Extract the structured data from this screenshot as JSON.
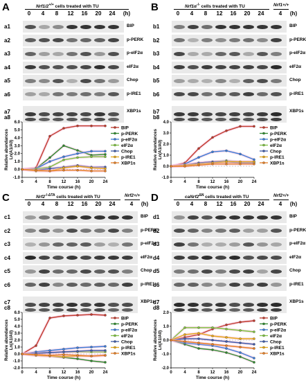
{
  "time_points": [
    "0",
    "4",
    "8",
    "12",
    "16",
    "20",
    "24"
  ],
  "time_unit": "(h)",
  "extra_lane_time": "4",
  "panels": [
    {
      "letter": "A",
      "genotype": "Nrf1/2",
      "genotype_sup": "+/+",
      "title_suffix": " cells treated with TU",
      "control_label": "",
      "rows": [
        {
          "id": "a1",
          "protein": "BIP"
        },
        {
          "id": "a2",
          "protein": "p-PERK"
        },
        {
          "id": "a3",
          "protein": "p-eIF2α"
        },
        {
          "id": "a4",
          "protein": "eIF2α"
        },
        {
          "id": "a5",
          "protein": "Chop"
        },
        {
          "id": "a6",
          "protein": "p-IRE1"
        },
        {
          "id": "a7",
          "protein": "XBP1s"
        }
      ],
      "chart_id": "a8"
    },
    {
      "letter": "B",
      "genotype": "Nrf1α",
      "genotype_sup": "-/-",
      "title_suffix": " cells treated with TU",
      "control_label": "Nrf1+/+",
      "rows": [
        {
          "id": "b1",
          "protein": "BIP"
        },
        {
          "id": "b2",
          "protein": "p-PERK"
        },
        {
          "id": "b3",
          "protein": "p-eIF2α"
        },
        {
          "id": "b4",
          "protein": "eIF2α"
        },
        {
          "id": "b5",
          "protein": "Chop"
        },
        {
          "id": "b6",
          "protein": "p-IRE1"
        },
        {
          "id": "b7",
          "protein": "XBP1s"
        }
      ],
      "chart_id": "b8"
    },
    {
      "letter": "C",
      "genotype": "Nrf2",
      "genotype_sup": "-/-ΔTA",
      "title_suffix": " cells treated with TU",
      "control_label": "Nrf2+/+",
      "rows": [
        {
          "id": "c1",
          "protein": "BIP"
        },
        {
          "id": "c2",
          "protein": "p-PERK"
        },
        {
          "id": "c3",
          "protein": "p-eIF2α"
        },
        {
          "id": "c4",
          "protein": "eIF2α"
        },
        {
          "id": "c5",
          "protein": "Chop"
        },
        {
          "id": "c6",
          "protein": "p-IRE1"
        },
        {
          "id": "c7",
          "protein": "XBP1s"
        }
      ],
      "chart_id": "c8"
    },
    {
      "letter": "D",
      "genotype": "caNrf2",
      "genotype_sup": "ΔN",
      "title_suffix": " cells treated with TU",
      "control_label": "Nrf2+/+",
      "rows": [
        {
          "id": "d1",
          "protein": "BIP"
        },
        {
          "id": "d2",
          "protein": "p-PERK"
        },
        {
          "id": "d3",
          "protein": "p-eIF2α"
        },
        {
          "id": "d4",
          "protein": "eIF2α"
        },
        {
          "id": "d5",
          "protein": "Chop"
        },
        {
          "id": "d6",
          "protein": "p-IRE1"
        },
        {
          "id": "d7",
          "protein": "XBP1s"
        }
      ],
      "chart_id": "d8"
    }
  ],
  "chart_data": [
    {
      "type": "line",
      "panel": "a8",
      "xlabel": "Time course (h)",
      "ylabel": "Relative abundances Ln(A1/A0)",
      "x": [
        0,
        4,
        8,
        12,
        16,
        20,
        24
      ],
      "ylim": [
        -1,
        6
      ],
      "yticks": [
        -1,
        0,
        1,
        2,
        3,
        4,
        5,
        6
      ],
      "legend_position": "right",
      "series": [
        {
          "name": "BIP",
          "color": "#c0392b",
          "values": [
            0,
            0.2,
            4.2,
            5.2,
            5.5,
            5.5,
            5.5
          ]
        },
        {
          "name": "p-PERK",
          "color": "#2e8b2e",
          "values": [
            0,
            0.1,
            1.5,
            3.0,
            2.4,
            1.8,
            1.9
          ]
        },
        {
          "name": "p-eIF2α",
          "color": "#3a7bd5",
          "values": [
            0,
            0.1,
            1.0,
            1.6,
            2.0,
            2.3,
            2.3
          ]
        },
        {
          "name": "eIF2α",
          "color": "#7fc241",
          "values": [
            0,
            0.05,
            0.3,
            1.2,
            1.5,
            1.6,
            1.6
          ]
        },
        {
          "name": "Chop",
          "color": "#3d5aa8",
          "values": [
            0,
            -0.1,
            0.1,
            0.3,
            0.5,
            0.3,
            0.3
          ]
        },
        {
          "name": "p-IRE1",
          "color": "#e6a817",
          "values": [
            0,
            -0.2,
            -0.2,
            0.2,
            0.4,
            0.2,
            0.1
          ]
        },
        {
          "name": "XBP1s",
          "color": "#e67e22",
          "values": [
            0,
            -0.1,
            -0.2,
            -0.1,
            -0.1,
            -0.2,
            -0.2
          ]
        }
      ]
    },
    {
      "type": "line",
      "panel": "b8",
      "xlabel": "Time course (h)",
      "ylabel": "Relative abundances Ln(A1/A0)",
      "x": [
        0,
        4,
        8,
        12,
        16,
        20,
        24
      ],
      "ylim": [
        -1,
        4
      ],
      "yticks": [
        -1,
        0,
        1,
        2,
        3,
        4
      ],
      "legend_position": "right",
      "series": [
        {
          "name": "BIP",
          "color": "#c0392b",
          "values": [
            0,
            0.3,
            1.6,
            2.6,
            3.2,
            3.6,
            3.6
          ]
        },
        {
          "name": "p-PERK",
          "color": "#2e8b2e",
          "values": [
            0,
            0.1,
            0.3,
            0.4,
            0.5,
            0.4,
            0.4
          ]
        },
        {
          "name": "p-eIF2α",
          "color": "#3a7bd5",
          "values": [
            0,
            0.2,
            0.8,
            1.3,
            1.4,
            1.1,
            0.6
          ]
        },
        {
          "name": "eIF2α",
          "color": "#7fc241",
          "values": [
            0,
            0.05,
            0.2,
            0.3,
            0.4,
            0.4,
            0.4
          ]
        },
        {
          "name": "Chop",
          "color": "#3d5aa8",
          "values": [
            0,
            0.1,
            0.3,
            0.4,
            0.4,
            0.3,
            0.3
          ]
        },
        {
          "name": "p-IRE1",
          "color": "#e6a817",
          "values": [
            0,
            0.1,
            0.2,
            0.3,
            0.4,
            0.4,
            0.4
          ]
        },
        {
          "name": "XBP1s",
          "color": "#e67e22",
          "values": [
            0,
            0.0,
            0.1,
            0.2,
            0.2,
            0.2,
            0.2
          ]
        }
      ]
    },
    {
      "type": "line",
      "panel": "c8",
      "xlabel": "Time course (h)",
      "ylabel": "Relative abundances Ln(A1/A0)",
      "x": [
        0,
        4,
        8,
        12,
        16,
        20,
        24
      ],
      "ylim": [
        -2,
        6
      ],
      "yticks": [
        -2,
        -1,
        0,
        1,
        2,
        3,
        4,
        5,
        6
      ],
      "legend_position": "right",
      "series": [
        {
          "name": "BIP",
          "color": "#c0392b",
          "values": [
            0,
            1.2,
            5.2,
            5.5,
            5.6,
            5.7,
            5.6
          ]
        },
        {
          "name": "p-PERK",
          "color": "#2e8b2e",
          "values": [
            0,
            -0.2,
            -0.3,
            -0.5,
            -0.7,
            -1.0,
            -1.2
          ]
        },
        {
          "name": "p-eIF2α",
          "color": "#3a7bd5",
          "values": [
            0,
            0.3,
            0.5,
            0.7,
            0.9,
            1.0,
            1.1
          ]
        },
        {
          "name": "eIF2α",
          "color": "#7fc241",
          "values": [
            0,
            0.1,
            0.2,
            0.3,
            0.3,
            0.3,
            0.3
          ]
        },
        {
          "name": "Chop",
          "color": "#3d5aa8",
          "values": [
            0,
            0.1,
            0.2,
            0.3,
            0.4,
            0.5,
            0.5
          ]
        },
        {
          "name": "p-IRE1",
          "color": "#e6a817",
          "values": [
            0,
            -0.2,
            -0.3,
            -0.4,
            -0.3,
            -0.3,
            -0.2
          ]
        },
        {
          "name": "XBP1s",
          "color": "#e67e22",
          "values": [
            0,
            -0.1,
            -0.2,
            -0.1,
            -0.2,
            -0.3,
            -0.2
          ]
        }
      ]
    },
    {
      "type": "line",
      "panel": "d8",
      "xlabel": "Time course (h)",
      "ylabel": "Relative abundances Ln(A1/A0)",
      "x": [
        0,
        4,
        8,
        12,
        16,
        20,
        24
      ],
      "ylim": [
        -2,
        2
      ],
      "yticks": [
        -2,
        -1,
        0,
        1,
        2
      ],
      "legend_position": "right",
      "series": [
        {
          "name": "BIP",
          "color": "#c0392b",
          "values": [
            0,
            0.2,
            0.4,
            0.8,
            1.1,
            1.3,
            1.4
          ]
        },
        {
          "name": "p-PERK",
          "color": "#2e8b2e",
          "values": [
            0,
            -0.3,
            -0.6,
            -0.7,
            -0.9,
            -1.2,
            -1.6
          ]
        },
        {
          "name": "p-eIF2α",
          "color": "#3a7bd5",
          "values": [
            0,
            -0.2,
            -0.3,
            -0.4,
            -0.6,
            -0.9,
            -1.3
          ]
        },
        {
          "name": "eIF2α",
          "color": "#7fc241",
          "values": [
            0,
            0.9,
            0.9,
            0.9,
            0.8,
            0.7,
            0.6
          ]
        },
        {
          "name": "Chop",
          "color": "#3d5aa8",
          "values": [
            0,
            0.1,
            0.1,
            0.0,
            -0.1,
            -0.2,
            -0.3
          ]
        },
        {
          "name": "p-IRE1",
          "color": "#e6a817",
          "values": [
            0,
            0.4,
            0.5,
            0.3,
            0.2,
            0.1,
            0.1
          ]
        },
        {
          "name": "XBP1s",
          "color": "#e67e22",
          "values": [
            0,
            -0.1,
            -0.2,
            -0.3,
            -0.4,
            -0.5,
            -0.6
          ]
        }
      ]
    }
  ]
}
